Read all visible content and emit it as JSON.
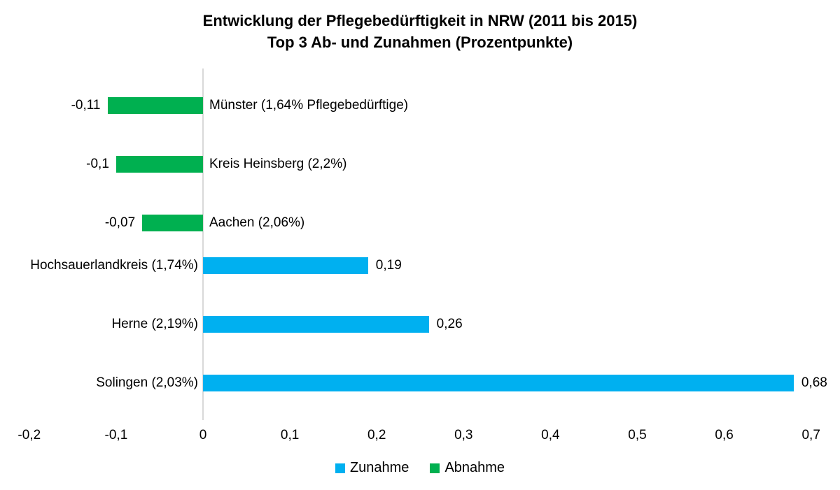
{
  "title": {
    "line1": "Entwicklung der Pflegebedürftigkeit in NRW (2011 bis 2015)",
    "line2": "Top 3 Ab- und Zunahmen (Prozentpunkte)"
  },
  "colors": {
    "zunahme_blue": "#00B0F0",
    "abnahme_green": "#00B050",
    "axis_line_gray": "#D9D9D9",
    "text": "#000000"
  },
  "chart_data": {
    "type": "bar",
    "orientation": "horizontal",
    "title": "Entwicklung der Pflegebedürftigkeit in NRW (2011 bis 2015) Top 3 Ab- und Zunahmen (Prozentpunkte)",
    "categories": [
      "Münster (1,64% Pflegebedürftige)",
      "Kreis Heinsberg (2,2%)",
      "Aachen (2,06%)",
      "Hochsauerlandkreis (1,74%)",
      "Herne (2,19%)",
      "Solingen (2,03%)"
    ],
    "series": [
      {
        "name": "Zunahme",
        "color": "#00B0F0",
        "values": [
          null,
          null,
          null,
          0.19,
          0.26,
          0.68
        ]
      },
      {
        "name": "Abnahme",
        "color": "#00B050",
        "values": [
          -0.11,
          -0.1,
          -0.07,
          null,
          null,
          null
        ]
      }
    ],
    "value_labels": [
      "-0,11",
      "-0,1",
      "-0,07",
      "0,19",
      "0,26",
      "0,68"
    ],
    "xlim": [
      -0.2,
      0.7
    ],
    "x_tick_values": [
      -0.2,
      -0.1,
      0,
      0.1,
      0.2,
      0.3,
      0.4,
      0.5,
      0.6,
      0.7
    ],
    "x_tick_labels": [
      "-0,2",
      "-0,1",
      "0",
      "0,1",
      "0,2",
      "0,3",
      "0,4",
      "0,5",
      "0,6",
      "0,7"
    ],
    "grid": false,
    "legend_position": "bottom",
    "legend": [
      {
        "label": "Zunahme",
        "color": "#00B0F0"
      },
      {
        "label": "Abnahme",
        "color": "#00B050"
      }
    ]
  }
}
